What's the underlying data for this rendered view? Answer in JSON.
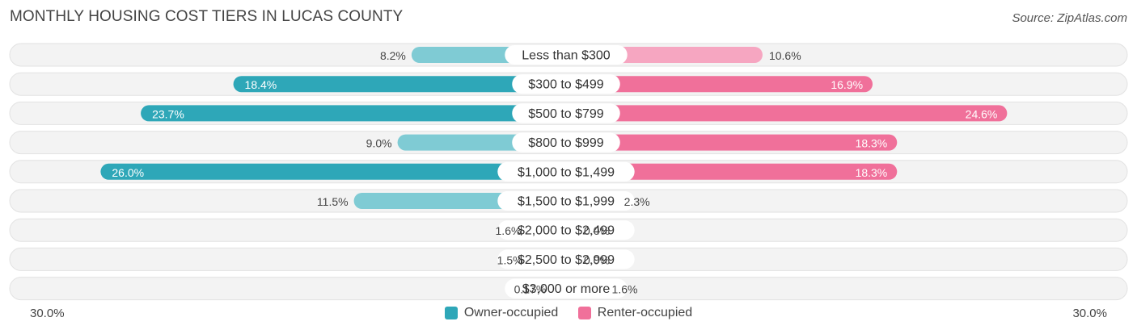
{
  "title": "MONTHLY HOUSING COST TIERS IN LUCAS COUNTY",
  "source": "Source: ZipAtlas.com",
  "axis": {
    "left_label": "30.0%",
    "right_label": "30.0%"
  },
  "legend": [
    {
      "label": "Owner-occupied",
      "color": "#2ea7b8"
    },
    {
      "label": "Renter-occupied",
      "color": "#f0709a"
    }
  ],
  "chart_data": {
    "type": "bar",
    "orientation": "horizontal-diverging",
    "xlim": [
      -30,
      30
    ],
    "categories": [
      "Less than $300",
      "$300 to $499",
      "$500 to $799",
      "$800 to $999",
      "$1,000 to $1,499",
      "$1,500 to $1,999",
      "$2,000 to $2,499",
      "$2,500 to $2,999",
      "$3,000 or more"
    ],
    "series": [
      {
        "name": "Owner-occupied",
        "color": "#2ea7b8",
        "values": [
          8.2,
          18.4,
          23.7,
          9.0,
          26.0,
          11.5,
          1.6,
          1.5,
          0.17
        ],
        "labels": [
          "8.2%",
          "18.4%",
          "23.7%",
          "9.0%",
          "26.0%",
          "11.5%",
          "1.6%",
          "1.5%",
          "0.17%"
        ]
      },
      {
        "name": "Renter-occupied",
        "color": "#f0709a",
        "values": [
          10.6,
          16.9,
          24.6,
          18.3,
          18.3,
          2.3,
          0.0,
          0.0,
          1.6
        ],
        "labels": [
          "10.6%",
          "16.9%",
          "24.6%",
          "18.3%",
          "18.3%",
          "2.3%",
          "0.0%",
          "0.0%",
          "1.6%"
        ]
      }
    ]
  }
}
